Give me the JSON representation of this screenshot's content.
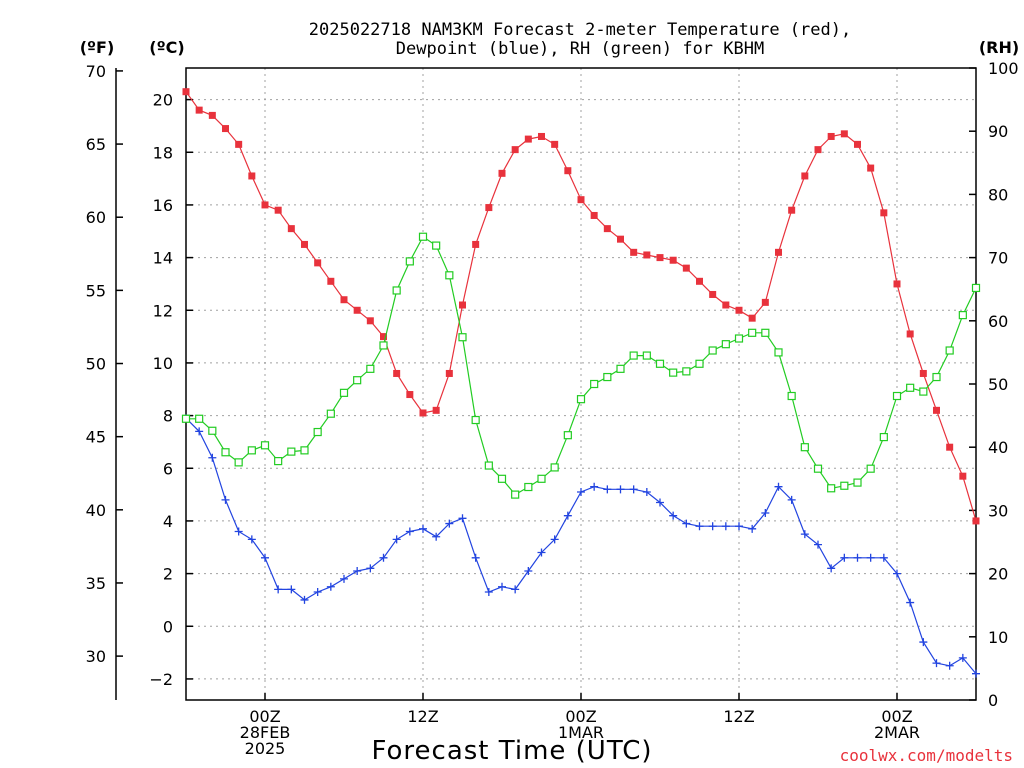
{
  "chart_data": {
    "type": "line",
    "title": "2025022718 NAM3KM Forecast 2-meter Temperature (red),",
    "subtitle": "Dewpoint (blue), RH (green) for KBHM",
    "xlabel": "Forecast Time (UTC)",
    "unit_labels": {
      "fahrenheit": "(ºF)",
      "celsius": "(ºC)",
      "rh": "(RH)"
    },
    "credit": "coolwx.com/modelts",
    "x_hours": [
      0,
      1,
      2,
      3,
      4,
      5,
      6,
      7,
      8,
      9,
      10,
      11,
      12,
      13,
      14,
      15,
      16,
      17,
      18,
      19,
      20,
      21,
      22,
      23,
      24,
      25,
      26,
      27,
      28,
      29,
      30,
      31,
      32,
      33,
      34,
      35,
      36,
      37,
      38,
      39,
      40,
      41,
      42,
      43,
      44,
      45,
      46,
      47,
      48,
      49,
      50,
      51,
      52,
      53,
      54,
      55,
      56,
      57,
      58,
      59,
      60
    ],
    "x_ticks": [
      {
        "hour": 6,
        "lines": [
          "00Z",
          "28FEB",
          "2025"
        ]
      },
      {
        "hour": 18,
        "lines": [
          "12Z"
        ]
      },
      {
        "hour": 30,
        "lines": [
          "00Z",
          "1MAR"
        ]
      },
      {
        "hour": 42,
        "lines": [
          "12Z"
        ]
      },
      {
        "hour": 54,
        "lines": [
          "00Z",
          "2MAR"
        ]
      }
    ],
    "celsius_axis": {
      "range": [
        -2.8,
        21.2
      ],
      "ticks": [
        -2,
        0,
        2,
        4,
        6,
        8,
        10,
        12,
        14,
        16,
        18,
        20
      ]
    },
    "fahrenheit_axis": {
      "range": [
        27.0,
        70.2
      ],
      "ticks": [
        30,
        35,
        40,
        45,
        50,
        55,
        60,
        65,
        70
      ]
    },
    "rh_axis": {
      "range": [
        0,
        100
      ],
      "ticks": [
        0,
        10,
        20,
        30,
        40,
        50,
        60,
        70,
        80,
        90,
        100
      ]
    },
    "grid": true,
    "colors": {
      "temperature": "#e8323c",
      "dewpoint": "#2244e0",
      "rh": "#22cc22",
      "credit": "#e8323c",
      "axis": "#000000",
      "grid": "#a0a0a0"
    },
    "series": [
      {
        "name": "2-meter Temperature (red)",
        "axis": "celsius",
        "marker": "filled-square",
        "values": [
          20.3,
          19.6,
          19.4,
          18.9,
          18.3,
          17.1,
          16.0,
          15.8,
          15.1,
          14.5,
          13.8,
          13.1,
          12.4,
          12.0,
          11.6,
          11.0,
          9.6,
          8.8,
          8.1,
          8.2,
          9.6,
          12.2,
          14.5,
          15.9,
          17.2,
          18.1,
          18.5,
          18.6,
          18.3,
          17.3,
          16.2,
          15.6,
          15.1,
          14.7,
          14.2,
          14.1,
          14.0,
          13.9,
          13.6,
          13.1,
          12.6,
          12.2,
          12.0,
          11.7,
          12.3,
          14.2,
          15.8,
          17.1,
          18.1,
          18.6,
          18.7,
          18.3,
          17.4,
          15.7,
          13.0,
          11.1,
          9.6,
          8.2,
          6.8,
          5.7,
          4.0
        ]
      },
      {
        "name": "Dewpoint (blue)",
        "axis": "celsius",
        "marker": "plus",
        "values": [
          7.9,
          7.4,
          6.4,
          4.8,
          3.6,
          3.3,
          2.6,
          1.4,
          1.4,
          1.0,
          1.3,
          1.5,
          1.8,
          2.1,
          2.2,
          2.6,
          3.3,
          3.6,
          3.7,
          3.4,
          3.9,
          4.1,
          2.6,
          1.3,
          1.5,
          1.4,
          2.1,
          2.8,
          3.3,
          4.2,
          5.1,
          5.3,
          5.2,
          5.2,
          5.2,
          5.1,
          4.7,
          4.2,
          3.9,
          3.8,
          3.8,
          3.8,
          3.8,
          3.7,
          4.3,
          5.3,
          4.8,
          3.5,
          3.1,
          2.2,
          2.6,
          2.6,
          2.6,
          2.6,
          2.0,
          0.9,
          -0.6,
          -1.4,
          -1.5,
          -1.2,
          -1.8
        ]
      },
      {
        "name": "RH (green)",
        "axis": "rh",
        "marker": "open-square",
        "values": [
          44.5,
          44.5,
          42.6,
          39.2,
          37.6,
          39.5,
          40.3,
          37.8,
          39.3,
          39.5,
          42.4,
          45.3,
          48.6,
          50.6,
          52.4,
          56.1,
          64.8,
          69.4,
          73.3,
          71.9,
          67.2,
          57.4,
          44.3,
          37.1,
          35.0,
          32.5,
          33.7,
          35.0,
          36.8,
          41.9,
          47.6,
          50.0,
          51.1,
          52.4,
          54.5,
          54.5,
          53.2,
          51.8,
          52.0,
          53.2,
          55.3,
          56.3,
          57.2,
          58.1,
          58.1,
          55.0,
          48.1,
          40.0,
          36.6,
          33.5,
          33.9,
          34.4,
          36.6,
          41.6,
          48.1,
          49.4,
          48.8,
          51.1,
          55.3,
          60.9,
          65.2
        ]
      }
    ]
  }
}
